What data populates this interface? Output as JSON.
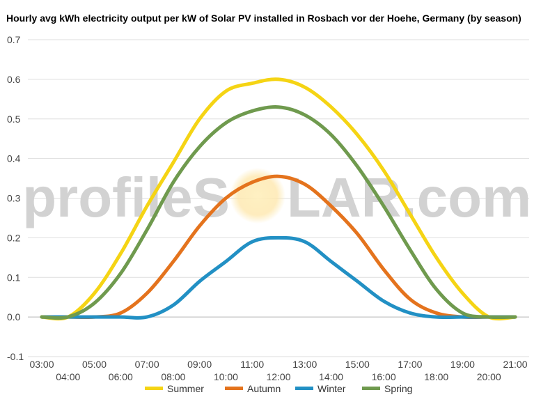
{
  "chart_data": {
    "type": "line",
    "title": "Hourly avg kWh electricity output per kW of Solar PV installed in Rosbach vor der Hoehe, Germany (by season)",
    "watermark": {
      "left": "profileS",
      "right": "LAR.com"
    },
    "x": [
      "03:00",
      "04:00",
      "05:00",
      "06:00",
      "07:00",
      "08:00",
      "09:00",
      "10:00",
      "11:00",
      "12:00",
      "13:00",
      "14:00",
      "15:00",
      "16:00",
      "17:00",
      "18:00",
      "19:00",
      "20:00",
      "21:00"
    ],
    "ylim": [
      -0.1,
      0.7
    ],
    "yticks": [
      "-0.1",
      "0.0",
      "0.1",
      "0.2",
      "0.3",
      "0.4",
      "0.5",
      "0.6",
      "0.7"
    ],
    "grid": true,
    "legend_position": "bottom",
    "series": [
      {
        "name": "Summer",
        "color": "#f5d414",
        "values": [
          0.0,
          0.0,
          0.06,
          0.16,
          0.28,
          0.39,
          0.5,
          0.57,
          0.59,
          0.6,
          0.58,
          0.53,
          0.46,
          0.37,
          0.26,
          0.15,
          0.06,
          0.0,
          0.0
        ]
      },
      {
        "name": "Autumn",
        "color": "#e4731d",
        "values": [
          0.0,
          0.0,
          0.0,
          0.01,
          0.06,
          0.14,
          0.23,
          0.3,
          0.34,
          0.355,
          0.335,
          0.28,
          0.21,
          0.12,
          0.045,
          0.01,
          0.0,
          0.0,
          0.0
        ]
      },
      {
        "name": "Winter",
        "color": "#2290c4",
        "values": [
          0.0,
          0.0,
          0.0,
          0.0,
          0.0,
          0.03,
          0.09,
          0.14,
          0.19,
          0.2,
          0.19,
          0.14,
          0.09,
          0.04,
          0.01,
          0.0,
          0.0,
          0.0,
          0.0
        ]
      },
      {
        "name": "Spring",
        "color": "#6f9a4e",
        "values": [
          0.0,
          0.0,
          0.035,
          0.11,
          0.22,
          0.34,
          0.43,
          0.49,
          0.52,
          0.53,
          0.51,
          0.46,
          0.38,
          0.28,
          0.17,
          0.07,
          0.01,
          0.0,
          0.0
        ]
      }
    ]
  }
}
